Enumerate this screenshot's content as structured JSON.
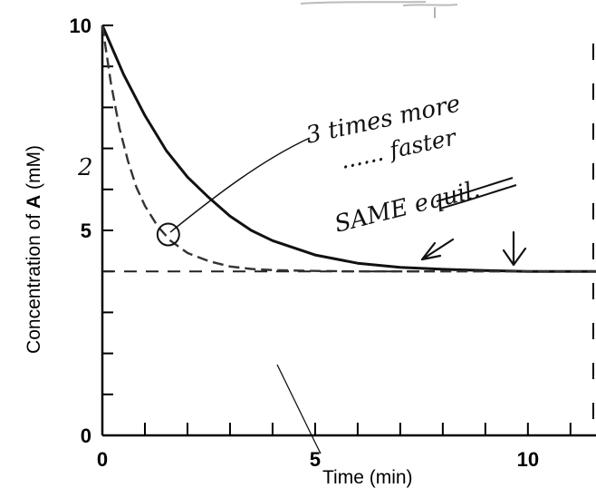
{
  "chart_data": {
    "type": "line",
    "xlabel": "Time (min)",
    "ylabel_prefix": "Concentration of ",
    "ylabel_bold": "A",
    "ylabel_suffix": " (mM)",
    "xlim": [
      0,
      11.6
    ],
    "ylim": [
      0,
      10
    ],
    "x_ticks": [
      0,
      5,
      10
    ],
    "y_ticks": [
      0,
      5,
      10
    ],
    "x_minor_step": 1,
    "y_minor_step": 1,
    "equilibrium": 4,
    "series": [
      {
        "style": "solid",
        "color": "#111111",
        "x": [
          0,
          0.5,
          1,
          1.5,
          2,
          2.5,
          3,
          3.5,
          4,
          5,
          6,
          7,
          8,
          9,
          10,
          11.6
        ],
        "y": [
          10,
          8.8,
          7.8,
          6.95,
          6.3,
          5.8,
          5.35,
          5.0,
          4.75,
          4.4,
          4.2,
          4.1,
          4.05,
          4.02,
          4.0,
          4.0
        ]
      },
      {
        "style": "dashed",
        "color": "#333333",
        "x": [
          0,
          0.2,
          0.4,
          0.6,
          0.8,
          1.0,
          1.3,
          1.6,
          2.0,
          2.5,
          3.0,
          3.5,
          4.0,
          5.0,
          6.0,
          7.0,
          11.6
        ],
        "y": [
          10,
          8.6,
          7.5,
          6.7,
          6.05,
          5.6,
          5.1,
          4.75,
          4.45,
          4.25,
          4.12,
          4.06,
          4.03,
          4.01,
          4.0,
          4.0,
          4.0
        ]
      }
    ],
    "annotations": {
      "note_line1": "3 times more",
      "note_line2": "...... faster",
      "note_line3": "SAME equil.",
      "margin_digit": "2",
      "circle_point": [
        1.55,
        4.9
      ]
    }
  }
}
